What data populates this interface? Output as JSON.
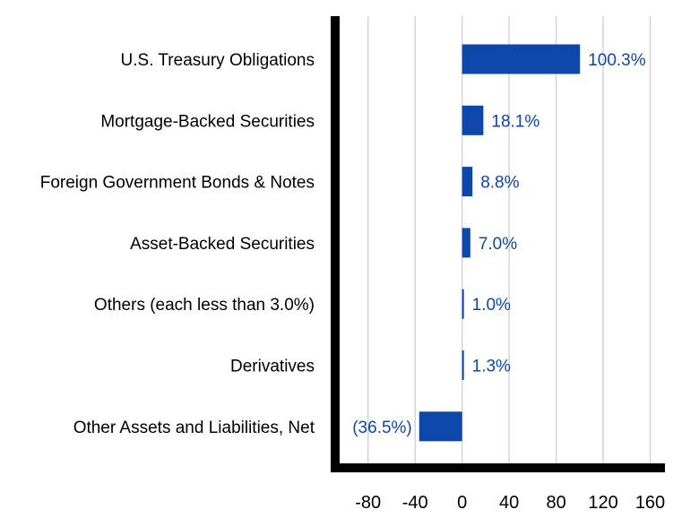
{
  "chart_data": {
    "type": "bar",
    "orientation": "horizontal",
    "categories": [
      "U.S. Treasury Obligations",
      "Mortgage-Backed Securities",
      "Foreign Government Bonds & Notes",
      "Asset-Backed Securities",
      "Others (each less than 3.0%)",
      "Derivatives",
      "Other Assets and Liabilities, Net"
    ],
    "values": [
      100.3,
      18.1,
      8.8,
      7.0,
      1.0,
      1.3,
      -36.5
    ],
    "data_labels": [
      "100.3%",
      "18.1%",
      "8.8%",
      "7.0%",
      "1.0%",
      "1.3%",
      "(36.5%)"
    ],
    "xticks": [
      -80,
      -40,
      0,
      40,
      80,
      120,
      160
    ],
    "xtick_labels": [
      "-80",
      "-40",
      "0",
      "40",
      "80",
      "120",
      "160"
    ],
    "xlim": [
      -108,
      168
    ],
    "grid": true,
    "title": "",
    "xlabel": "",
    "ylabel": ""
  },
  "colors": {
    "bar": "#0c47a9",
    "label": "#0c47a9",
    "grid": "#d4d4d4",
    "axis": "#000000",
    "text": "#000000"
  }
}
